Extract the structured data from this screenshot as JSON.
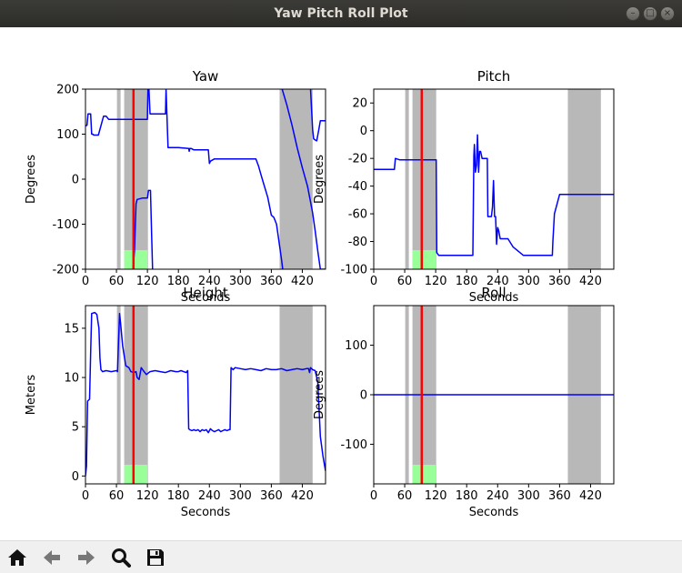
{
  "window": {
    "title": "Yaw Pitch Roll Plot"
  },
  "window_controls": [
    "minimize-icon",
    "maximize-icon",
    "close-icon"
  ],
  "toolbar": {
    "icons": [
      "home-icon",
      "back-arrow-icon",
      "forward-arrow-icon",
      "zoom-magnifier-icon",
      "save-floppy-icon"
    ]
  },
  "colors": {
    "line": "#0000ff",
    "marker": "#ff0000",
    "shade": "#b8b8b8",
    "highlight": "#99ff99"
  },
  "chart_data": [
    {
      "type": "line",
      "title": "Yaw",
      "xlabel": "Seconds",
      "ylabel": "Degrees",
      "xlim": [
        0,
        465
      ],
      "ylim": [
        -200,
        200
      ],
      "xticks": [
        0,
        60,
        120,
        180,
        240,
        300,
        360,
        420
      ],
      "yticks": [
        -200,
        -100,
        0,
        100,
        200
      ],
      "shaded_spans": [
        [
          61,
          68
        ],
        [
          75,
          121
        ],
        [
          376,
          440
        ]
      ],
      "highlight_span": [
        75,
        120
      ],
      "marker_x": 93,
      "series": [
        {
          "x": [
            0,
            3,
            5,
            8,
            10,
            12,
            14,
            16,
            25,
            35,
            40,
            45,
            50,
            60,
            70,
            80,
            90,
            100,
            110,
            120,
            121,
            123,
            125,
            130,
            140,
            155,
            156,
            160,
            170,
            180,
            190,
            200,
            201,
            202,
            205,
            210,
            220,
            238,
            240,
            242,
            250,
            260,
            270,
            300,
            330,
            335,
            340,
            345,
            353,
            360,
            365,
            370,
            380,
            382
          ],
          "y": [
            118,
            120,
            145,
            145,
            145,
            100,
            100,
            98,
            98,
            140,
            140,
            133,
            133,
            133,
            133,
            133,
            133,
            133,
            133,
            133,
            200,
            200,
            145,
            145,
            145,
            145,
            200,
            70,
            70,
            70,
            69,
            68,
            62,
            68,
            68,
            65,
            65,
            65,
            35,
            40,
            45,
            45,
            45,
            45,
            45,
            30,
            10,
            -10,
            -40,
            -80,
            -85,
            -100,
            -180,
            -200
          ]
        },
        {
          "x": [
            92,
            95,
            98,
            100,
            110,
            120,
            122,
            124,
            126,
            128,
            130,
            131
          ],
          "y": [
            -200,
            -160,
            -55,
            -45,
            -42,
            -42,
            -25,
            -25,
            -25,
            -120,
            -200,
            -200
          ]
        },
        {
          "x": [
            381,
            390,
            400,
            410,
            420,
            430,
            435,
            440,
            445,
            450,
            455,
            460,
            465
          ],
          "y": [
            200,
            165,
            120,
            70,
            25,
            -15,
            -45,
            -75,
            -115,
            -160,
            -200,
            -200,
            -200
          ]
        },
        {
          "x": [
            436,
            440,
            442,
            445,
            448,
            452,
            455,
            465
          ],
          "y": [
            200,
            110,
            90,
            87,
            85,
            110,
            130,
            130
          ]
        }
      ]
    },
    {
      "type": "line",
      "title": "Pitch",
      "xlabel": "Seconds",
      "ylabel": "Degrees",
      "xlim": [
        0,
        465
      ],
      "ylim": [
        -100,
        30
      ],
      "xticks": [
        0,
        60,
        120,
        180,
        240,
        300,
        360,
        420
      ],
      "yticks": [
        -100,
        -80,
        -60,
        -40,
        -20,
        0,
        20
      ],
      "shaded_spans": [
        [
          61,
          68
        ],
        [
          75,
          121
        ],
        [
          376,
          440
        ]
      ],
      "highlight_span": [
        75,
        120
      ],
      "marker_x": 93,
      "series": [
        {
          "x": [
            0,
            10,
            20,
            30,
            35,
            38,
            40,
            42,
            50,
            60,
            80,
            100,
            118,
            120,
            121,
            122,
            126,
            130,
            150,
            170,
            180,
            185,
            188,
            190,
            192,
            194,
            195,
            197,
            199,
            201,
            203,
            205,
            207,
            210,
            215,
            220,
            221,
            223,
            225,
            228,
            230,
            232,
            234,
            236,
            238,
            240,
            242,
            245,
            250,
            260,
            270,
            290,
            300,
            320,
            340,
            345,
            346,
            347,
            350,
            360,
            380,
            400,
            420,
            440,
            465
          ],
          "y": [
            -28,
            -28,
            -28,
            -28,
            -28,
            -28,
            -28,
            -20,
            -21,
            -21,
            -21,
            -21,
            -21,
            -21,
            -21,
            -88,
            -90,
            -90,
            -90,
            -90,
            -90,
            -90,
            -90,
            -90,
            -90,
            -18,
            -10,
            -30,
            -25,
            -3,
            -30,
            -15,
            -15,
            -20,
            -20,
            -20,
            -62,
            -62,
            -62,
            -62,
            -55,
            -36,
            -62,
            -62,
            -82,
            -70,
            -72,
            -78,
            -78,
            -78,
            -84,
            -90,
            -90,
            -90,
            -90,
            -90,
            -90,
            -80,
            -60,
            -46,
            -46,
            -46,
            -46,
            -46,
            -46
          ]
        }
      ]
    },
    {
      "type": "line",
      "title": "Height",
      "xlabel": "Seconds",
      "ylabel": "Meters",
      "xlim": [
        0,
        465
      ],
      "ylim": [
        -0.8,
        17.3
      ],
      "xticks": [
        0,
        60,
        120,
        180,
        240,
        300,
        360,
        420
      ],
      "yticks": [
        0,
        5,
        10,
        15
      ],
      "shaded_spans": [
        [
          61,
          68
        ],
        [
          75,
          121
        ],
        [
          376,
          440
        ]
      ],
      "highlight_span": [
        75,
        120
      ],
      "marker_x": 93,
      "series": [
        {
          "x": [
            0,
            2,
            4,
            6,
            8,
            10,
            12,
            18,
            22,
            26,
            28,
            30,
            33,
            40,
            50,
            60,
            62,
            64,
            66,
            68,
            72,
            78,
            84,
            88,
            94,
            98,
            100,
            104,
            108,
            112,
            118,
            125,
            135,
            145,
            155,
            165,
            175,
            180,
            185,
            190,
            195,
            198,
            200,
            202,
            206,
            210,
            214,
            218,
            222,
            226,
            230,
            234,
            238,
            242,
            246,
            250,
            254,
            258,
            262,
            266,
            270,
            274,
            278,
            280,
            282,
            284,
            286,
            290,
            300,
            310,
            320,
            330,
            340,
            350,
            360,
            370,
            380,
            390,
            400,
            410,
            420,
            428,
            432,
            434,
            436,
            440,
            445,
            450,
            455,
            460,
            465
          ],
          "y": [
            0,
            1,
            7.6,
            7.7,
            7.8,
            12.5,
            16.5,
            16.6,
            16.4,
            15,
            12,
            10.8,
            10.6,
            10.7,
            10.6,
            10.7,
            10.6,
            13.5,
            16.5,
            15.5,
            13.2,
            11.2,
            11.0,
            10.6,
            10.5,
            10.6,
            10.0,
            9.8,
            11,
            10.7,
            10.3,
            10.6,
            10.7,
            10.6,
            10.5,
            10.7,
            10.6,
            10.6,
            10.7,
            10.6,
            10.5,
            10.7,
            4.8,
            4.7,
            4.6,
            4.7,
            4.6,
            4.7,
            4.5,
            4.7,
            4.6,
            4.7,
            4.4,
            4.8,
            4.6,
            4.5,
            4.6,
            4.7,
            4.5,
            4.6,
            4.7,
            4.6,
            4.7,
            4.7,
            11,
            10.9,
            10.8,
            11.0,
            10.9,
            10.8,
            10.9,
            10.8,
            10.7,
            10.9,
            10.8,
            10.8,
            10.9,
            10.7,
            10.8,
            10.9,
            10.8,
            10.9,
            10.9,
            10.5,
            11,
            10.8,
            10.7,
            9.5,
            4.0,
            2.0,
            0.5
          ]
        }
      ]
    },
    {
      "type": "line",
      "title": "Roll",
      "xlabel": "Seconds",
      "ylabel": "Degrees",
      "xlim": [
        0,
        465
      ],
      "ylim": [
        -180,
        180
      ],
      "xticks": [
        0,
        60,
        120,
        180,
        240,
        300,
        360,
        420
      ],
      "yticks": [
        -100,
        0,
        100
      ],
      "shaded_spans": [
        [
          61,
          68
        ],
        [
          75,
          121
        ],
        [
          376,
          440
        ]
      ],
      "highlight_span": [
        75,
        120
      ],
      "marker_x": 93,
      "series": [
        {
          "x": [
            0,
            100,
            200,
            300,
            400,
            465
          ],
          "y": [
            0,
            0,
            0,
            0,
            0,
            0
          ]
        }
      ]
    }
  ]
}
